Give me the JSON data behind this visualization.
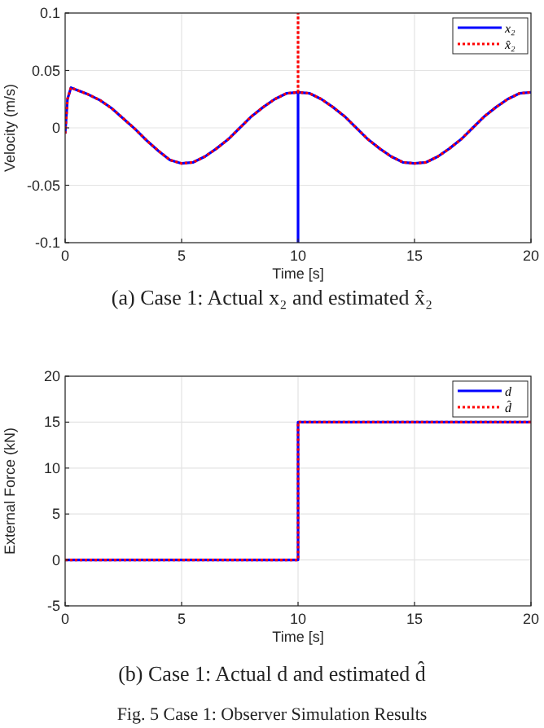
{
  "chart_data": [
    {
      "type": "line",
      "xlabel": "Time [s]",
      "ylabel": "Velocity (m/s)",
      "xlim": [
        0,
        20
      ],
      "ylim": [
        -0.1,
        0.1
      ],
      "xticks": [
        0,
        5,
        10,
        15,
        20
      ],
      "yticks": [
        -0.1,
        -0.05,
        0,
        0.05,
        0.1
      ],
      "grid": true,
      "legend": "top right",
      "annotations": [
        "(a) Case 1: Actual x₂ and estimated x̂₂"
      ],
      "series": [
        {
          "name": "x₂",
          "color": "#0000ff",
          "line_style": "solid",
          "x": [
            0,
            0.1,
            0.25,
            0.5,
            1,
            1.5,
            2,
            2.5,
            3,
            3.5,
            4,
            4.5,
            5,
            5.5,
            6,
            6.5,
            7,
            7.5,
            8,
            8.5,
            9,
            9.5,
            10,
            10,
            10,
            10.5,
            11,
            11.5,
            12,
            12.5,
            13,
            13.5,
            14,
            14.5,
            15,
            15.5,
            16,
            16.5,
            17,
            17.5,
            18,
            18.5,
            19,
            19.5,
            20
          ],
          "values": [
            -0.005,
            0.025,
            0.035,
            0.033,
            0.029,
            0.024,
            0.017,
            0.008,
            -0.001,
            -0.011,
            -0.02,
            -0.028,
            -0.031,
            -0.03,
            -0.025,
            -0.018,
            -0.01,
            0,
            0.01,
            0.018,
            0.025,
            0.03,
            0.031,
            -0.1,
            0.031,
            0.03,
            0.025,
            0.018,
            0.01,
            0,
            -0.01,
            -0.018,
            -0.025,
            -0.03,
            -0.031,
            -0.03,
            -0.025,
            -0.018,
            -0.01,
            0,
            0.01,
            0.018,
            0.025,
            0.03,
            0.031
          ]
        },
        {
          "name": "x̂₂",
          "color": "#ff0000",
          "line_style": "dotted",
          "x": [
            0,
            0.1,
            0.25,
            0.5,
            1,
            1.5,
            2,
            2.5,
            3,
            3.5,
            4,
            4.5,
            5,
            5.5,
            6,
            6.5,
            7,
            7.5,
            8,
            8.5,
            9,
            9.5,
            10,
            10,
            10,
            10.5,
            11,
            11.5,
            12,
            12.5,
            13,
            13.5,
            14,
            14.5,
            15,
            15.5,
            16,
            16.5,
            17,
            17.5,
            18,
            18.5,
            19,
            19.5,
            20
          ],
          "values": [
            -0.005,
            0.025,
            0.035,
            0.033,
            0.029,
            0.024,
            0.017,
            0.008,
            -0.001,
            -0.011,
            -0.02,
            -0.028,
            -0.031,
            -0.03,
            -0.025,
            -0.018,
            -0.01,
            0,
            0.01,
            0.018,
            0.025,
            0.03,
            0.031,
            0.1,
            0.031,
            0.03,
            0.025,
            0.018,
            0.01,
            0,
            -0.01,
            -0.018,
            -0.025,
            -0.03,
            -0.031,
            -0.03,
            -0.025,
            -0.018,
            -0.01,
            0,
            0.01,
            0.018,
            0.025,
            0.03,
            0.031
          ]
        }
      ]
    },
    {
      "type": "line",
      "xlabel": "Time [s]",
      "ylabel": "External Force (kN)",
      "xlim": [
        0,
        20
      ],
      "ylim": [
        -5,
        20
      ],
      "xticks": [
        0,
        5,
        10,
        15,
        20
      ],
      "yticks": [
        -5,
        0,
        5,
        10,
        15,
        20
      ],
      "grid": true,
      "legend": "top right",
      "annotations": [
        "(b) Case 1: Actual d and estimated d̂",
        "Fig. 5 Case 1: Observer Simulation Results"
      ],
      "series": [
        {
          "name": "d",
          "color": "#0000ff",
          "line_style": "solid",
          "x": [
            0,
            10,
            10,
            20
          ],
          "values": [
            0,
            0,
            15,
            15
          ]
        },
        {
          "name": "d̂",
          "color": "#ff0000",
          "line_style": "dotted",
          "x": [
            0,
            10,
            10,
            20
          ],
          "values": [
            0,
            0,
            15,
            15
          ]
        }
      ]
    }
  ]
}
